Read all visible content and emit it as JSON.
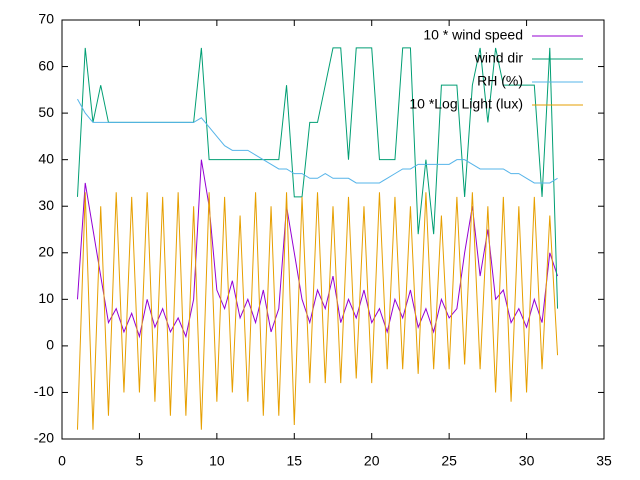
{
  "chart_data": {
    "type": "line",
    "x": [
      1,
      1.5,
      2,
      2.5,
      3,
      3.5,
      4,
      4.5,
      5,
      5.5,
      6,
      6.5,
      7,
      7.5,
      8,
      8.5,
      9,
      9.5,
      10,
      10.5,
      11,
      11.5,
      12,
      12.5,
      13,
      13.5,
      14,
      14.5,
      15,
      15.5,
      16,
      16.5,
      17,
      17.5,
      18,
      18.5,
      19,
      19.5,
      20,
      20.5,
      21,
      21.5,
      22,
      22.5,
      23,
      23.5,
      24,
      24.5,
      25,
      25.5,
      26,
      26.5,
      27,
      27.5,
      28,
      28.5,
      29,
      29.5,
      30,
      30.5,
      31,
      31.5,
      32
    ],
    "series": [
      {
        "name": "10 * wind speed",
        "color": "#9400d3",
        "values": [
          10,
          35,
          25,
          15,
          5,
          8,
          3,
          7,
          2,
          10,
          4,
          8,
          3,
          6,
          2,
          10,
          40,
          30,
          12,
          8,
          14,
          6,
          10,
          5,
          12,
          3,
          8,
          30,
          20,
          10,
          5,
          12,
          8,
          15,
          5,
          10,
          6,
          12,
          5,
          8,
          3,
          10,
          6,
          12,
          4,
          8,
          3,
          10,
          6,
          8,
          20,
          30,
          15,
          25,
          10,
          12,
          5,
          8,
          4,
          10,
          5,
          20,
          15
        ]
      },
      {
        "name": "wind dir",
        "color": "#009e73",
        "values": [
          32,
          64,
          48,
          56,
          48,
          48,
          48,
          48,
          48,
          48,
          48,
          48,
          48,
          48,
          48,
          48,
          64,
          40,
          40,
          40,
          40,
          40,
          40,
          40,
          40,
          40,
          40,
          56,
          32,
          32,
          48,
          48,
          56,
          64,
          64,
          40,
          64,
          64,
          64,
          40,
          40,
          40,
          64,
          64,
          24,
          40,
          24,
          56,
          56,
          56,
          32,
          56,
          64,
          48,
          64,
          56,
          56,
          56,
          56,
          56,
          32,
          64,
          8
        ]
      },
      {
        "name": "RH (%)",
        "color": "#56b4e9",
        "values": [
          53,
          50,
          48,
          48,
          48,
          48,
          48,
          48,
          48,
          48,
          48,
          48,
          48,
          48,
          48,
          48,
          49,
          47,
          45,
          43,
          42,
          42,
          42,
          41,
          40,
          39,
          38,
          38,
          37,
          37,
          36,
          36,
          37,
          36,
          36,
          36,
          35,
          35,
          35,
          35,
          36,
          37,
          38,
          38,
          39,
          39,
          39,
          39,
          39,
          40,
          40,
          39,
          38,
          38,
          38,
          38,
          37,
          37,
          36,
          35,
          35,
          35,
          36
        ]
      },
      {
        "name": "10 *Log Light (lux)",
        "color": "#e69f00",
        "values": [
          -18,
          33,
          -18,
          30,
          -15,
          33,
          -10,
          32,
          -10,
          33,
          -12,
          32,
          -15,
          33,
          -15,
          30,
          -18,
          33,
          -12,
          32,
          -10,
          28,
          -12,
          33,
          -15,
          30,
          -15,
          33,
          -17,
          32,
          -8,
          33,
          -8,
          30,
          -8,
          32,
          -7,
          30,
          -8,
          33,
          -5,
          32,
          -5,
          30,
          -6,
          33,
          -5,
          28,
          -5,
          32,
          -4,
          33,
          -5,
          30,
          -10,
          32,
          -12,
          30,
          -10,
          32,
          -5,
          28,
          -2
        ]
      }
    ],
    "xlim": [
      0,
      35
    ],
    "xticks": [
      0,
      5,
      10,
      15,
      20,
      25,
      30,
      35
    ],
    "ylim": [
      -20,
      70
    ],
    "yticks": [
      -20,
      -10,
      0,
      10,
      20,
      30,
      40,
      50,
      60,
      70
    ],
    "legend": "top-right"
  }
}
